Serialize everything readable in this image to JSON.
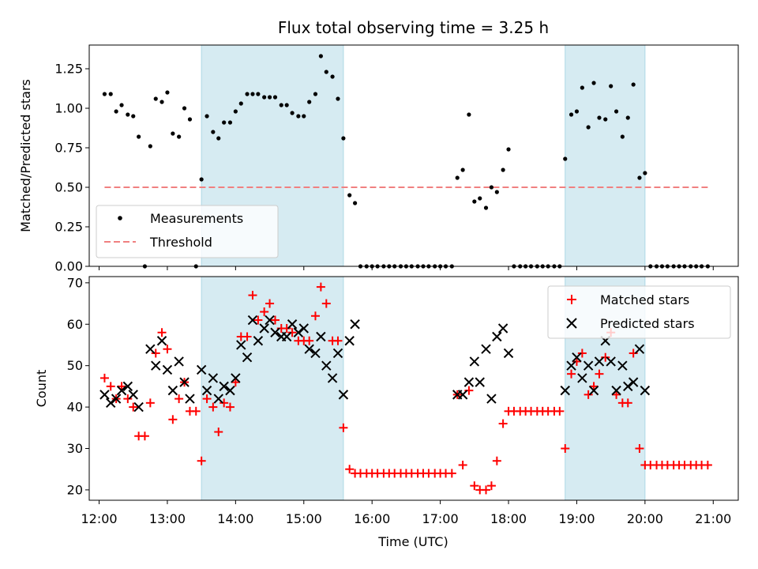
{
  "title": "Flux total observing time = 3.25 h",
  "colors": {
    "measure": "#000000",
    "threshold": "#f08080",
    "matched": "#ff0000",
    "predicted": "#000000",
    "shade": "#add8e6"
  },
  "top_panel": {
    "ylabel": "Matched/Predicted stars",
    "ylim": [
      0,
      1.4
    ],
    "yticks": [
      "0.00",
      "0.25",
      "0.50",
      "0.75",
      "1.00",
      "1.25"
    ],
    "legend": {
      "measure": "Measurements",
      "threshold": "Threshold"
    }
  },
  "bottom_panel": {
    "ylabel": "Count",
    "ylim": [
      17.5,
      71.5
    ],
    "yticks": [
      "20",
      "30",
      "40",
      "50",
      "60",
      "70"
    ],
    "legend": {
      "matched": "Matched stars",
      "predicted": "Predicted stars"
    }
  },
  "xaxis": {
    "label": "Time (UTC)",
    "xlim": [
      11.855,
      21.367
    ],
    "ticks": [
      "12:00",
      "13:00",
      "14:00",
      "15:00",
      "16:00",
      "17:00",
      "18:00",
      "19:00",
      "20:00",
      "21:00"
    ]
  },
  "chart_data": [
    {
      "type": "scatter",
      "title": "Flux total observing time = 3.25 h",
      "xlabel": "",
      "ylabel": "Matched/Predicted stars",
      "ylim": [
        0,
        1.4
      ],
      "shaded_intervals": [
        [
          13.5,
          15.58
        ],
        [
          18.83,
          20.0
        ]
      ],
      "threshold": {
        "name": "Threshold",
        "value": 0.5,
        "x": [
          12.08,
          20.92
        ]
      },
      "series": [
        {
          "name": "Measurements",
          "x": [
            12.08,
            12.17,
            12.25,
            12.33,
            12.42,
            12.5,
            12.58,
            12.67,
            12.75,
            12.83,
            12.92,
            13.0,
            13.08,
            13.17,
            13.25,
            13.33,
            13.42,
            13.5,
            13.58,
            13.67,
            13.75,
            13.83,
            13.92,
            14.0,
            14.08,
            14.17,
            14.25,
            14.33,
            14.42,
            14.5,
            14.58,
            14.67,
            14.75,
            14.83,
            14.92,
            15.0,
            15.08,
            15.17,
            15.25,
            15.33,
            15.42,
            15.5,
            15.58,
            15.67,
            15.75,
            15.83,
            15.92,
            16.0,
            16.08,
            16.17,
            16.25,
            16.33,
            16.42,
            16.5,
            16.58,
            16.67,
            16.75,
            16.83,
            16.92,
            17.0,
            17.08,
            17.17,
            17.25,
            17.33,
            17.42,
            17.5,
            17.58,
            17.67,
            17.75,
            17.83,
            17.92,
            18.0,
            18.08,
            18.17,
            18.25,
            18.33,
            18.42,
            18.5,
            18.58,
            18.67,
            18.75,
            18.83,
            18.92,
            19.0,
            19.08,
            19.17,
            19.25,
            19.33,
            19.42,
            19.5,
            19.58,
            19.67,
            19.75,
            19.83,
            19.92,
            20.0,
            20.08,
            20.17,
            20.25,
            20.33,
            20.42,
            20.5,
            20.58,
            20.67,
            20.75,
            20.83,
            20.92
          ],
          "y": [
            1.09,
            1.09,
            0.98,
            1.02,
            0.96,
            0.95,
            0.82,
            0.0,
            0.76,
            1.06,
            1.04,
            1.1,
            0.84,
            0.82,
            1.0,
            0.93,
            0.0,
            0.55,
            0.95,
            0.85,
            0.81,
            0.91,
            0.91,
            0.98,
            1.03,
            1.09,
            1.09,
            1.09,
            1.07,
            1.07,
            1.07,
            1.02,
            1.02,
            0.97,
            0.95,
            0.95,
            1.04,
            1.09,
            1.33,
            1.23,
            1.2,
            1.06,
            0.81,
            0.45,
            0.4,
            0.0,
            0.0,
            0.0,
            0.0,
            0.0,
            0.0,
            0.0,
            0.0,
            0.0,
            0.0,
            0.0,
            0.0,
            0.0,
            0.0,
            0.0,
            0.0,
            0.0,
            0.56,
            0.61,
            0.96,
            0.41,
            0.43,
            0.37,
            0.5,
            0.47,
            0.61,
            0.74,
            0.0,
            0.0,
            0.0,
            0.0,
            0.0,
            0.0,
            0.0,
            0.0,
            0.0,
            0.68,
            0.96,
            0.98,
            1.13,
            0.88,
            1.16,
            0.94,
            0.93,
            1.14,
            0.98,
            0.82,
            0.94,
            1.15,
            0.56,
            0.59,
            0.0,
            0.0,
            0.0,
            0.0,
            0.0,
            0.0,
            0.0,
            0.0,
            0.0,
            0.0,
            0.0
          ]
        }
      ]
    },
    {
      "type": "scatter",
      "title": "",
      "xlabel": "Time (UTC)",
      "ylabel": "Count",
      "ylim": [
        17.5,
        71.5
      ],
      "shaded_intervals": [
        [
          13.5,
          15.58
        ],
        [
          18.83,
          20.0
        ]
      ],
      "series": [
        {
          "name": "Matched stars",
          "x": [
            12.08,
            12.17,
            12.25,
            12.33,
            12.42,
            12.5,
            12.58,
            12.67,
            12.75,
            12.83,
            12.92,
            13.0,
            13.08,
            13.17,
            13.25,
            13.33,
            13.42,
            13.5,
            13.58,
            13.67,
            13.75,
            13.83,
            13.92,
            14.0,
            14.08,
            14.17,
            14.25,
            14.33,
            14.42,
            14.5,
            14.58,
            14.67,
            14.75,
            14.83,
            14.92,
            15.0,
            15.08,
            15.17,
            15.25,
            15.33,
            15.42,
            15.5,
            15.58,
            15.67,
            15.75,
            15.83,
            15.92,
            16.0,
            16.08,
            16.17,
            16.25,
            16.33,
            16.42,
            16.5,
            16.58,
            16.67,
            16.75,
            16.83,
            16.92,
            17.0,
            17.08,
            17.17,
            17.25,
            17.33,
            17.42,
            17.5,
            17.58,
            17.67,
            17.75,
            17.83,
            17.92,
            18.0,
            18.08,
            18.17,
            18.25,
            18.33,
            18.42,
            18.5,
            18.58,
            18.67,
            18.75,
            18.83,
            18.92,
            19.0,
            19.08,
            19.17,
            19.25,
            19.33,
            19.42,
            19.5,
            19.58,
            19.67,
            19.75,
            19.83,
            19.92,
            20.0,
            20.08,
            20.17,
            20.25,
            20.33,
            20.42,
            20.5,
            20.58,
            20.67,
            20.75,
            20.83,
            20.92
          ],
          "y": [
            47,
            45,
            42,
            45,
            42,
            40,
            33,
            33,
            41,
            53,
            58,
            54,
            37,
            42,
            46,
            39,
            39,
            27,
            42,
            40,
            34,
            41,
            40,
            46,
            57,
            57,
            67,
            61,
            63,
            65,
            61,
            59,
            59,
            58,
            56,
            56,
            56,
            62,
            69,
            65,
            56,
            56,
            35,
            25,
            24,
            24,
            24,
            24,
            24,
            24,
            24,
            24,
            24,
            24,
            24,
            24,
            24,
            24,
            24,
            24,
            24,
            24,
            43,
            26,
            44,
            21,
            20,
            20,
            21,
            27,
            36,
            39,
            39,
            39,
            39,
            39,
            39,
            39,
            39,
            39,
            39,
            30,
            48,
            51,
            53,
            43,
            45,
            48,
            52,
            58,
            43,
            41,
            41,
            53,
            30,
            26,
            26,
            26,
            26,
            26,
            26,
            26,
            26,
            26,
            26,
            26,
            26
          ]
        },
        {
          "name": "Predicted stars",
          "x": [
            12.08,
            12.17,
            12.25,
            12.33,
            12.42,
            12.5,
            12.58,
            12.75,
            12.83,
            12.92,
            13.0,
            13.08,
            13.17,
            13.25,
            13.33,
            13.5,
            13.58,
            13.67,
            13.75,
            13.83,
            13.92,
            14.0,
            14.08,
            14.17,
            14.25,
            14.33,
            14.42,
            14.5,
            14.58,
            14.67,
            14.75,
            14.83,
            14.92,
            15.0,
            15.08,
            15.17,
            15.25,
            15.33,
            15.42,
            15.5,
            15.58,
            15.67,
            15.75,
            17.25,
            17.33,
            17.42,
            17.5,
            17.58,
            17.67,
            17.75,
            17.83,
            17.92,
            18.0,
            18.83,
            18.92,
            19.0,
            19.08,
            19.17,
            19.25,
            19.33,
            19.42,
            19.5,
            19.58,
            19.67,
            19.75,
            19.83,
            19.92,
            20.0
          ],
          "y": [
            43,
            41,
            42,
            44,
            45,
            43,
            40,
            54,
            50,
            56,
            49,
            44,
            51,
            46,
            42,
            49,
            44,
            47,
            42,
            45,
            44,
            47,
            55,
            52,
            61,
            56,
            59,
            61,
            58,
            57,
            57,
            60,
            58,
            59,
            54,
            53,
            57,
            50,
            47,
            53,
            43,
            56,
            60,
            43,
            43,
            46,
            51,
            46,
            54,
            42,
            57,
            59,
            53,
            44,
            50,
            52,
            47,
            50,
            44,
            51,
            56,
            51,
            44,
            50,
            45,
            46,
            54,
            44
          ]
        }
      ]
    }
  ]
}
